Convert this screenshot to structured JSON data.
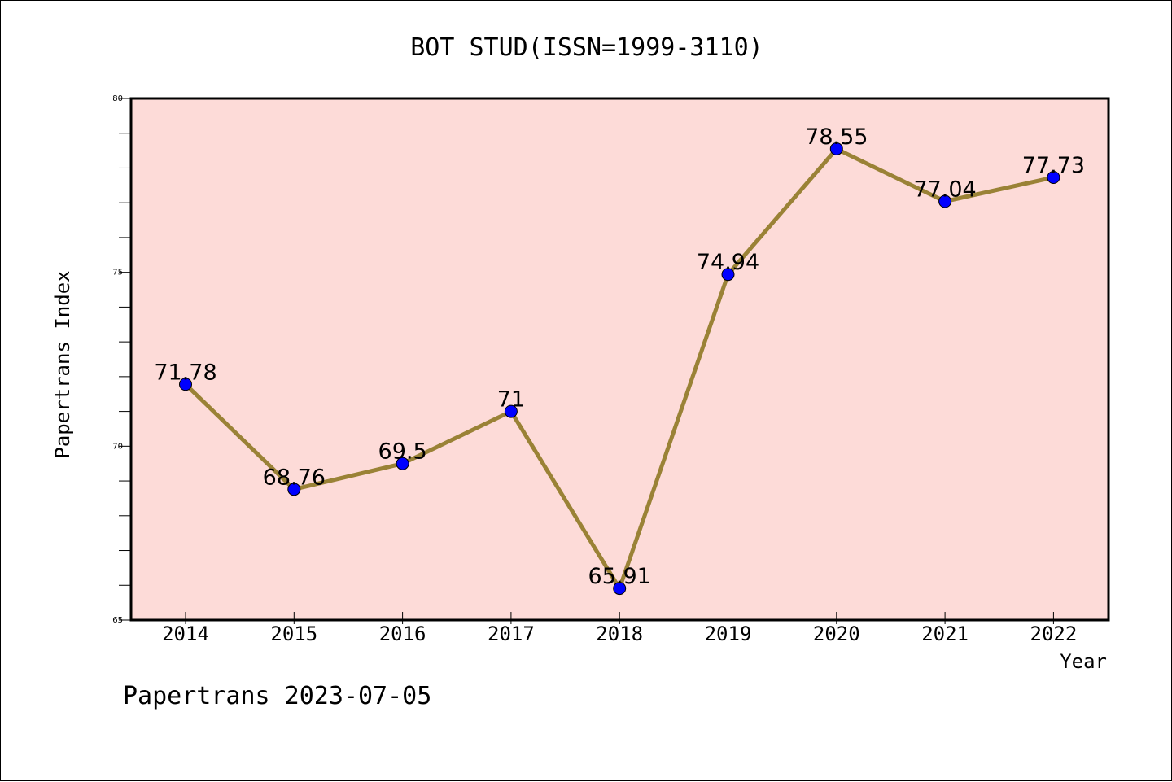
{
  "chart_data": {
    "type": "line",
    "title": "BOT STUD(ISSN=1999-3110)",
    "xlabel": "Year",
    "ylabel": "Papertrans Index",
    "categories": [
      "2014",
      "2015",
      "2016",
      "2017",
      "2018",
      "2019",
      "2020",
      "2021",
      "2022"
    ],
    "values": [
      71.78,
      68.76,
      69.5,
      71,
      65.91,
      74.94,
      78.55,
      77.04,
      77.73
    ],
    "data_labels": [
      "71.78",
      "68.76",
      "69.5",
      "71",
      "65.91",
      "74.94",
      "78.55",
      "77.04",
      "77.73"
    ],
    "ylim": [
      65,
      80
    ],
    "yticks": [
      "65",
      "70",
      "75",
      "80"
    ],
    "grid": false,
    "colors": {
      "plot_background": "#fddbd8",
      "line": "#9a8236",
      "marker": "#0000ff"
    }
  },
  "footer": "Papertrans 2023-07-05"
}
